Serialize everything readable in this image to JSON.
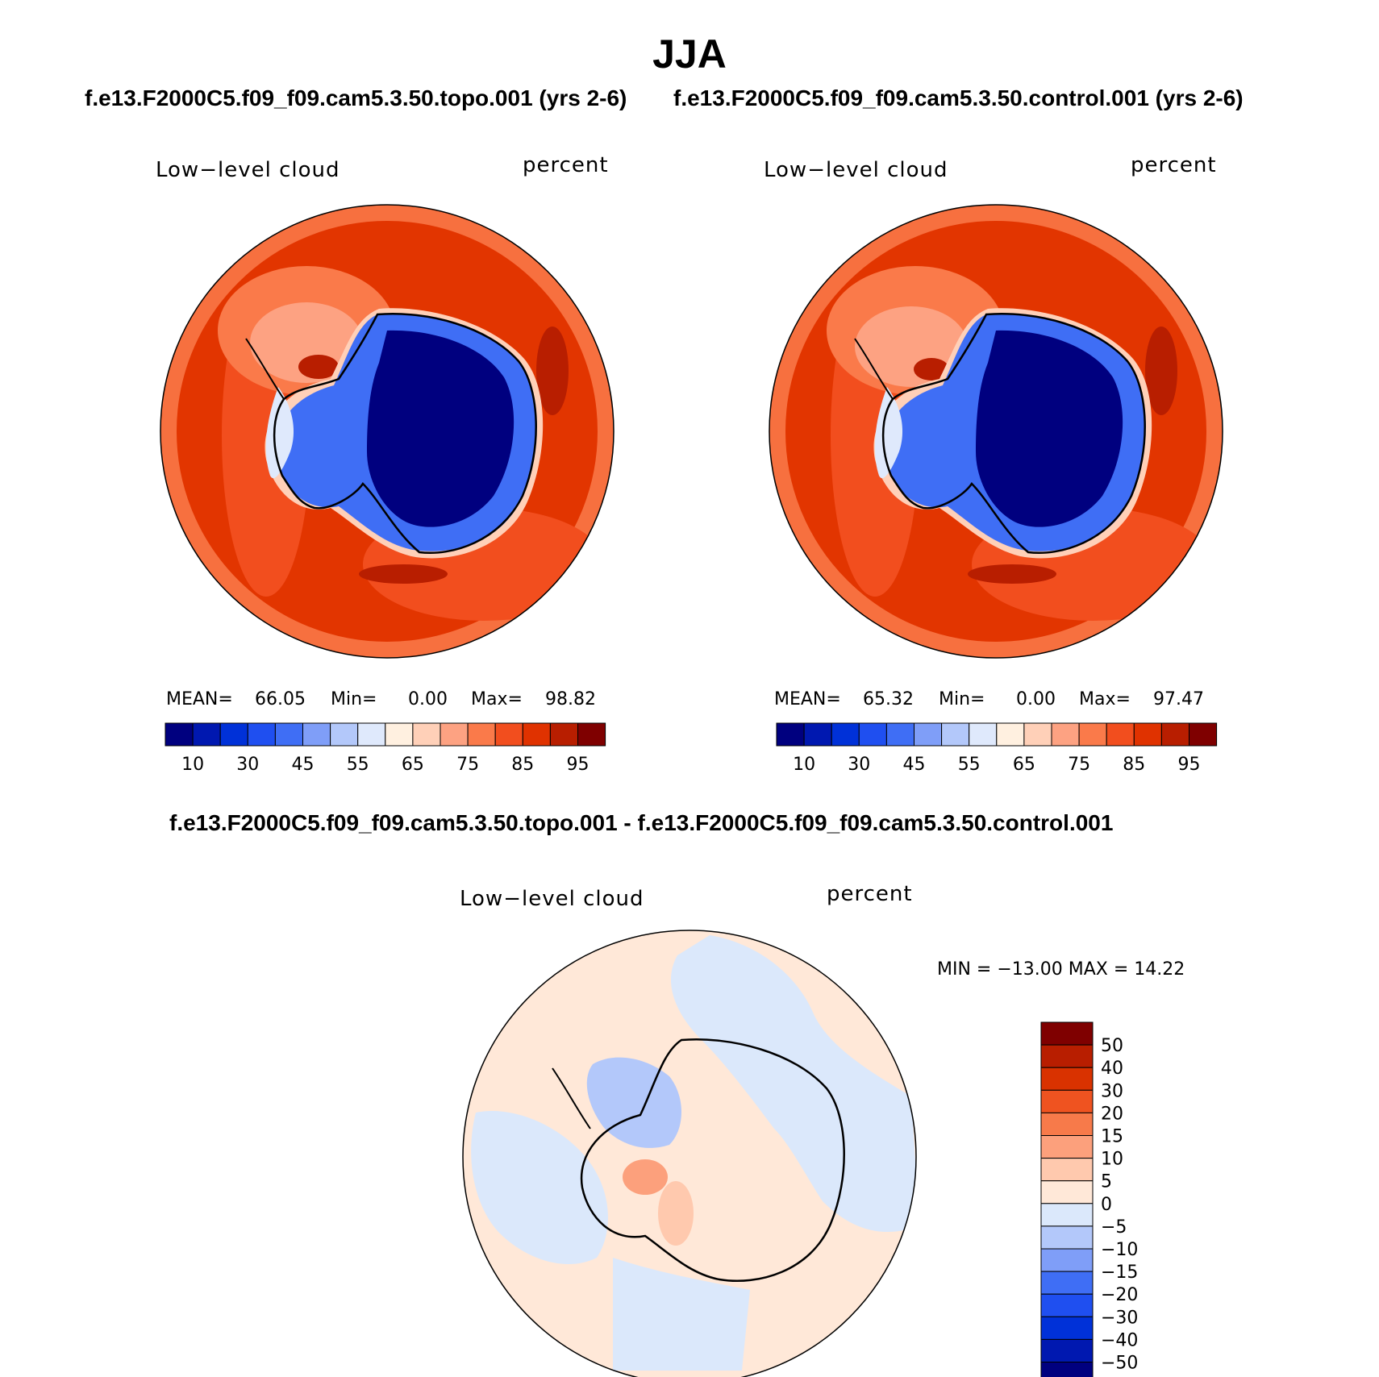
{
  "title": "JJA",
  "panels": [
    {
      "case": "f.e13.F2000C5.f09_f09.cam5.3.50.topo.001 (yrs 2-6)",
      "variable": "Low−level cloud",
      "units": "percent",
      "stats": {
        "mean_label": "MEAN=",
        "mean": "66.05",
        "min_label": "Min=",
        "min": "0.00",
        "max_label": "Max=",
        "max": "98.82"
      }
    },
    {
      "case": "f.e13.F2000C5.f09_f09.cam5.3.50.control.001 (yrs 2-6)",
      "variable": "Low−level cloud",
      "units": "percent",
      "stats": {
        "mean_label": "MEAN=",
        "mean": "65.32",
        "min_label": "Min=",
        "min": "0.00",
        "max_label": "Max=",
        "max": "97.47"
      }
    }
  ],
  "diff": {
    "case": "f.e13.F2000C5.f09_f09.cam5.3.50.topo.001 - f.e13.F2000C5.f09_f09.cam5.3.50.control.001",
    "variable": "Low−level cloud",
    "units": "percent",
    "minmax": "MIN = −13.00 MAX =   14.22"
  },
  "abs_colorbar": {
    "colors": [
      "#00007f",
      "#0018b0",
      "#0031d8",
      "#1f4ff0",
      "#3f6ef5",
      "#7f9ef8",
      "#b3c8fa",
      "#dfe9fc",
      "#fff0e0",
      "#ffd0b8",
      "#fda282",
      "#fa7a4a",
      "#f24e1e",
      "#e03200",
      "#b81e00",
      "#7f0000"
    ],
    "labels": [
      "10",
      "30",
      "45",
      "55",
      "65",
      "75",
      "85",
      "95"
    ]
  },
  "diff_colorbar": {
    "colors": [
      "#00007f",
      "#0018b0",
      "#0031d8",
      "#1f4ff0",
      "#3f6ef5",
      "#7f9ef8",
      "#b3c8fa",
      "#dbe8fb",
      "#ffe8d8",
      "#ffc9ae",
      "#fca07c",
      "#f77a4a",
      "#ef5320",
      "#d93200",
      "#b81e00",
      "#7f0000"
    ],
    "labels": [
      "50",
      "40",
      "30",
      "20",
      "15",
      "10",
      "5",
      "0",
      "−5",
      "−10",
      "−15",
      "−20",
      "−30",
      "−40",
      "−50"
    ]
  }
}
